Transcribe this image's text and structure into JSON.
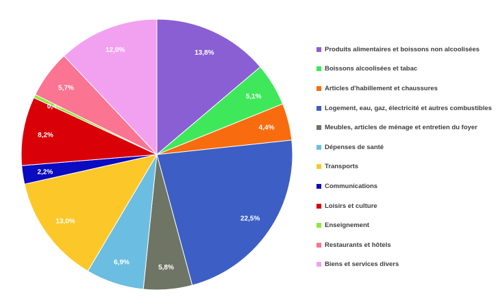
{
  "chart_data": {
    "type": "pie",
    "categories": [
      "Produits alimentaires et boissons non alcoolisées",
      "Boissons alcoolisées et tabac",
      "Articles d'habillement et chaussures",
      "Logement, eau, gaz, électricité et autres combustibles",
      "Meubles, articles de ménage et entretien du foyer",
      "Dépenses de santé",
      "Transports",
      "Communications",
      "Loisirs et culture",
      "Enseignement",
      "Restaurants et hôtels",
      "Biens et services divers"
    ],
    "values": [
      13.8,
      5.1,
      4.4,
      22.5,
      5.8,
      6.9,
      13.0,
      2.2,
      8.2,
      0.4,
      5.7,
      12.0
    ],
    "labels": [
      "13,8%",
      "5,1%",
      "4,4%",
      "22,5%",
      "5,8%",
      "6,9%",
      "13,0%",
      "2,2%",
      "8,2%",
      "0,4%",
      "5,7%",
      "12,0%"
    ],
    "colors": [
      "#8a5fd3",
      "#3ee85a",
      "#f86c0f",
      "#3c5ec5",
      "#6e7565",
      "#6bbde1",
      "#fcc829",
      "#0b0bc2",
      "#d90008",
      "#8ee83c",
      "#fb7491",
      "#f2a1f1"
    ],
    "title": "",
    "legend_position": "right"
  }
}
